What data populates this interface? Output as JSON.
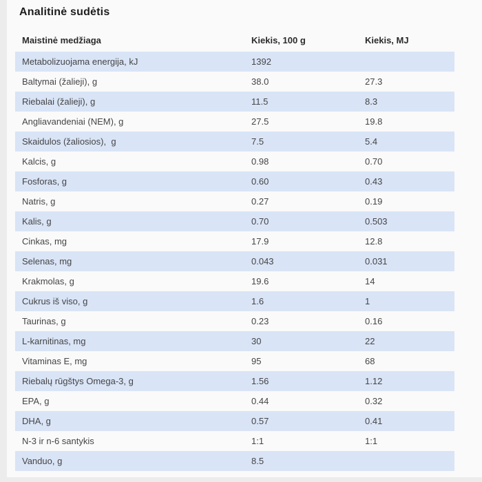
{
  "page": {
    "title": "Analitinė sudėtis"
  },
  "colors": {
    "row_highlight": "#d9e4f6",
    "page_background": "#ececec",
    "card_background": "#fafafa",
    "text": "#454545"
  },
  "table": {
    "columns": [
      "Maistinė medžiaga",
      "Kiekis, 100 g",
      "Kiekis, MJ"
    ],
    "rows": [
      {
        "name": "Metabolizuojama energija, kJ",
        "qty100g": "1392",
        "qtyMJ": ""
      },
      {
        "name": "Baltymai (žalieji), g",
        "qty100g": "38.0",
        "qtyMJ": "27.3"
      },
      {
        "name": "Riebalai (žalieji), g",
        "qty100g": "11.5",
        "qtyMJ": "8.3"
      },
      {
        "name": "Angliavandeniai (NEM), g",
        "qty100g": "27.5",
        "qtyMJ": "19.8"
      },
      {
        "name": "Skaidulos (žaliosios),  g",
        "qty100g": "7.5",
        "qtyMJ": "5.4"
      },
      {
        "name": "Kalcis, g",
        "qty100g": "0.98",
        "qtyMJ": "0.70"
      },
      {
        "name": "Fosforas, g",
        "qty100g": "0.60",
        "qtyMJ": "0.43"
      },
      {
        "name": "Natris, g",
        "qty100g": "0.27",
        "qtyMJ": "0.19"
      },
      {
        "name": "Kalis, g",
        "qty100g": "0.70",
        "qtyMJ": "0.503"
      },
      {
        "name": "Cinkas, mg",
        "qty100g": "17.9",
        "qtyMJ": "12.8"
      },
      {
        "name": "Selenas, mg",
        "qty100g": "0.043",
        "qtyMJ": "0.031"
      },
      {
        "name": "Krakmolas, g",
        "qty100g": "19.6",
        "qtyMJ": "14"
      },
      {
        "name": "Cukrus iš viso, g",
        "qty100g": "1.6",
        "qtyMJ": "1"
      },
      {
        "name": "Taurinas, g",
        "qty100g": "0.23",
        "qtyMJ": "0.16"
      },
      {
        "name": "L-karnitinas, mg",
        "qty100g": "30",
        "qtyMJ": "22"
      },
      {
        "name": "Vitaminas E, mg",
        "qty100g": "95",
        "qtyMJ": "68"
      },
      {
        "name": "Riebalų rūgštys Omega-3, g",
        "qty100g": "1.56",
        "qtyMJ": "1.12"
      },
      {
        "name": "EPA, g",
        "qty100g": "0.44",
        "qtyMJ": "0.32"
      },
      {
        "name": "DHA, g",
        "qty100g": "0.57",
        "qtyMJ": "0.41"
      },
      {
        "name": "N-3 ir n-6 santykis",
        "qty100g": "1:1",
        "qtyMJ": "1:1"
      },
      {
        "name": "Vanduo, g",
        "qty100g": "8.5",
        "qtyMJ": ""
      }
    ]
  }
}
